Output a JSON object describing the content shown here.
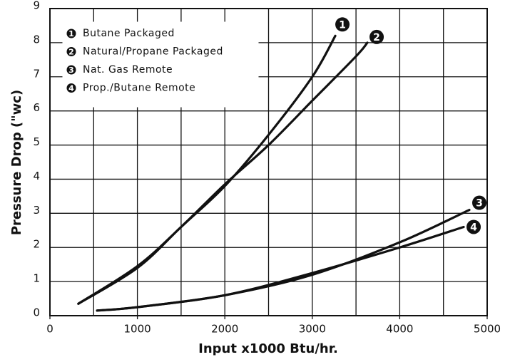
{
  "chart_data": {
    "type": "line",
    "xlabel": "Input x1000 Btu/hr.",
    "ylabel": "Pressure Drop (\"wc)",
    "xlim": [
      0,
      5000
    ],
    "xticks": [
      0,
      1000,
      2000,
      3000,
      4000,
      5000
    ],
    "x_grid": [
      500,
      1000,
      1500,
      2000,
      2500,
      3000,
      3500,
      4000,
      4500
    ],
    "ylim": [
      0,
      9
    ],
    "yticks": [
      0,
      1,
      2,
      3,
      4,
      5,
      6,
      7,
      8,
      9
    ],
    "grid": true,
    "legend": "upper left",
    "series": [
      {
        "name": "Butane Packaged",
        "label": "1",
        "color": "#111111",
        "x": [
          325,
          1000,
          1500,
          2000,
          2500,
          3000,
          3263
        ],
        "values": [
          0.35,
          1.4,
          2.6,
          3.8,
          5.3,
          7.0,
          8.2
        ]
      },
      {
        "name": "Natural/Propane Packaged",
        "label": "2",
        "color": "#111111",
        "x": [
          325,
          1000,
          1500,
          2000,
          2500,
          3000,
          3500,
          3630
        ],
        "values": [
          0.35,
          1.45,
          2.6,
          3.85,
          5.0,
          6.3,
          7.6,
          8.0
        ]
      },
      {
        "name": "Nat. Gas Remote",
        "label": "3",
        "color": "#111111",
        "x": [
          540,
          1000,
          2000,
          3000,
          4000,
          4796
        ],
        "values": [
          0.15,
          0.25,
          0.6,
          1.2,
          2.15,
          3.1
        ]
      },
      {
        "name": "Prop./Butane Remote",
        "label": "4",
        "color": "#111111",
        "x": [
          540,
          1000,
          2000,
          3000,
          4000,
          4731
        ],
        "values": [
          0.15,
          0.25,
          0.6,
          1.25,
          2.0,
          2.6
        ]
      }
    ]
  }
}
